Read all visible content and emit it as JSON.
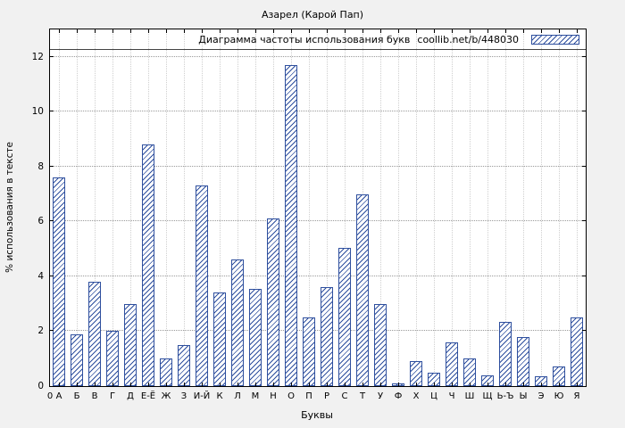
{
  "title": "Азарел (Карой Пап)",
  "legend": {
    "label": "Диаграмма частоты использования букв",
    "source": "coollib.net/b/448030"
  },
  "axes": {
    "y_label": "% использования в тексте",
    "x_label": "Буквы",
    "y_ticks": [
      0,
      2,
      4,
      6,
      8,
      10,
      12
    ],
    "origin_label": "0"
  },
  "colors": {
    "bar": "#2e4f9e",
    "plot_border": "#000000",
    "plot_background": "#ffffff",
    "page_background": "#f1f1f1",
    "h_grid": "#9a9a9a",
    "v_grid": "#cfcfcf"
  },
  "chart_data": {
    "type": "bar",
    "title": "Азарел (Карой Пап)",
    "xlabel": "Буквы",
    "ylabel": "% использования в тексте",
    "ylim": [
      0,
      13
    ],
    "grid": true,
    "legend_position": "top-inside",
    "legend_label": "Диаграмма частоты использования букв  coollib.net/b/448030",
    "categories": [
      "А",
      "Б",
      "В",
      "Г",
      "Д",
      "Е-Ё",
      "Ж",
      "З",
      "И-Й",
      "К",
      "Л",
      "М",
      "Н",
      "О",
      "П",
      "Р",
      "С",
      "Т",
      "У",
      "Ф",
      "Х",
      "Ц",
      "Ч",
      "Ш",
      "Щ",
      "Ь-Ъ",
      "Ы",
      "Э",
      "Ю",
      "Я"
    ],
    "values": [
      7.6,
      1.9,
      3.8,
      2.0,
      3.0,
      8.8,
      1.0,
      1.5,
      7.3,
      3.4,
      4.6,
      3.55,
      6.1,
      11.7,
      2.5,
      3.6,
      5.05,
      7.0,
      3.0,
      0.1,
      0.9,
      0.5,
      1.6,
      1.0,
      0.4,
      2.35,
      1.8,
      0.35,
      0.7,
      2.5
    ]
  }
}
